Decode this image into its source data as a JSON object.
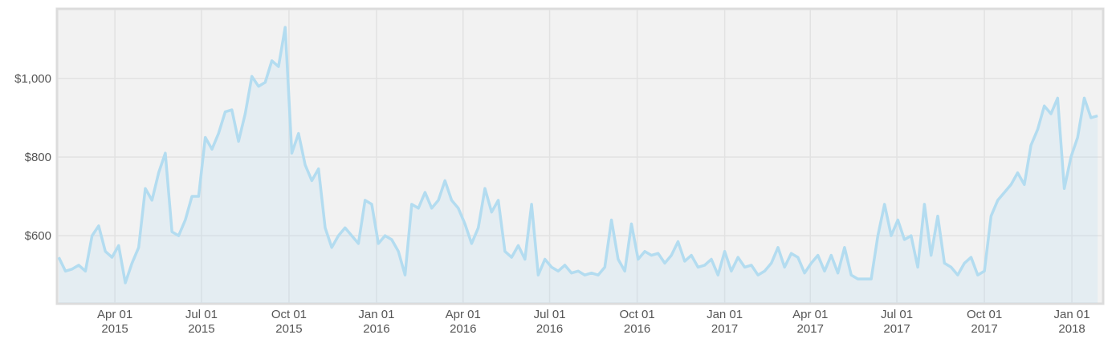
{
  "chart_data": {
    "type": "area",
    "x": [
      "2015-02-01",
      "2015-02-08",
      "2015-02-15",
      "2015-02-22",
      "2015-03-01",
      "2015-03-08",
      "2015-03-15",
      "2015-03-22",
      "2015-03-29",
      "2015-04-05",
      "2015-04-12",
      "2015-04-19",
      "2015-04-26",
      "2015-05-03",
      "2015-05-10",
      "2015-05-17",
      "2015-05-24",
      "2015-05-31",
      "2015-06-07",
      "2015-06-14",
      "2015-06-21",
      "2015-06-28",
      "2015-07-05",
      "2015-07-12",
      "2015-07-19",
      "2015-07-26",
      "2015-08-02",
      "2015-08-09",
      "2015-08-16",
      "2015-08-23",
      "2015-08-30",
      "2015-09-06",
      "2015-09-13",
      "2015-09-20",
      "2015-09-27",
      "2015-10-04",
      "2015-10-11",
      "2015-10-18",
      "2015-10-25",
      "2015-11-01",
      "2015-11-08",
      "2015-11-15",
      "2015-11-22",
      "2015-11-29",
      "2015-12-06",
      "2015-12-13",
      "2015-12-20",
      "2015-12-27",
      "2016-01-03",
      "2016-01-10",
      "2016-01-17",
      "2016-01-24",
      "2016-01-31",
      "2016-02-07",
      "2016-02-14",
      "2016-02-21",
      "2016-02-28",
      "2016-03-06",
      "2016-03-13",
      "2016-03-20",
      "2016-03-27",
      "2016-04-03",
      "2016-04-10",
      "2016-04-17",
      "2016-04-24",
      "2016-05-01",
      "2016-05-08",
      "2016-05-15",
      "2016-05-22",
      "2016-05-29",
      "2016-06-05",
      "2016-06-12",
      "2016-06-19",
      "2016-06-26",
      "2016-07-03",
      "2016-07-10",
      "2016-07-17",
      "2016-07-24",
      "2016-07-31",
      "2016-08-07",
      "2016-08-14",
      "2016-08-21",
      "2016-08-28",
      "2016-09-04",
      "2016-09-11",
      "2016-09-18",
      "2016-09-25",
      "2016-10-02",
      "2016-10-09",
      "2016-10-16",
      "2016-10-23",
      "2016-10-30",
      "2016-11-06",
      "2016-11-13",
      "2016-11-20",
      "2016-11-27",
      "2016-12-04",
      "2016-12-11",
      "2016-12-18",
      "2016-12-25",
      "2017-01-01",
      "2017-01-08",
      "2017-01-15",
      "2017-01-22",
      "2017-01-29",
      "2017-02-05",
      "2017-02-12",
      "2017-02-19",
      "2017-02-26",
      "2017-03-05",
      "2017-03-12",
      "2017-03-19",
      "2017-03-26",
      "2017-04-02",
      "2017-04-09",
      "2017-04-16",
      "2017-04-23",
      "2017-04-30",
      "2017-05-07",
      "2017-05-14",
      "2017-05-21",
      "2017-05-28",
      "2017-06-04",
      "2017-06-11",
      "2017-06-18",
      "2017-06-25",
      "2017-07-02",
      "2017-07-09",
      "2017-07-16",
      "2017-07-23",
      "2017-07-30",
      "2017-08-06",
      "2017-08-13",
      "2017-08-20",
      "2017-08-27",
      "2017-09-03",
      "2017-09-10",
      "2017-09-17",
      "2017-09-24",
      "2017-10-01",
      "2017-10-08",
      "2017-10-15",
      "2017-10-22",
      "2017-10-29",
      "2017-11-05",
      "2017-11-12",
      "2017-11-19",
      "2017-11-26",
      "2017-12-03",
      "2017-12-10",
      "2017-12-17",
      "2017-12-24",
      "2017-12-31",
      "2018-01-07",
      "2018-01-14",
      "2018-01-21",
      "2018-01-28"
    ],
    "values": [
      545,
      510,
      515,
      525,
      510,
      600,
      625,
      560,
      545,
      575,
      480,
      530,
      570,
      720,
      690,
      760,
      810,
      610,
      600,
      640,
      700,
      700,
      850,
      820,
      860,
      915,
      920,
      840,
      910,
      1005,
      980,
      990,
      1045,
      1030,
      1130,
      810,
      860,
      780,
      740,
      770,
      620,
      570,
      600,
      620,
      600,
      580,
      690,
      680,
      580,
      600,
      590,
      560,
      500,
      680,
      670,
      710,
      670,
      690,
      740,
      690,
      670,
      630,
      580,
      620,
      720,
      660,
      690,
      560,
      545,
      575,
      540,
      680,
      500,
      540,
      520,
      510,
      525,
      505,
      510,
      500,
      505,
      500,
      520,
      640,
      540,
      510,
      630,
      540,
      560,
      550,
      555,
      530,
      550,
      585,
      535,
      550,
      520,
      525,
      540,
      500,
      560,
      510,
      545,
      520,
      525,
      500,
      510,
      530,
      570,
      520,
      555,
      545,
      505,
      530,
      550,
      510,
      550,
      505,
      570,
      500,
      490,
      490,
      490,
      600,
      680,
      600,
      640,
      590,
      600,
      520,
      680,
      550,
      650,
      530,
      520,
      500,
      530,
      545,
      500,
      510,
      650,
      690,
      710,
      730,
      760,
      730,
      830,
      870,
      930,
      910,
      950,
      720,
      800,
      850,
      950,
      900,
      905
    ],
    "color": "#b3dcf0",
    "xlim": [
      "2015-01-31",
      "2018-02-02"
    ],
    "xticks": [
      {
        "value": "2015-04-01",
        "label": "Apr 01 2015"
      },
      {
        "value": "2015-07-01",
        "label": "Jul 01 2015"
      },
      {
        "value": "2015-10-01",
        "label": "Oct 01 2015"
      },
      {
        "value": "2016-01-01",
        "label": "Jan 01 2016"
      },
      {
        "value": "2016-04-01",
        "label": "Apr 01 2016"
      },
      {
        "value": "2016-07-01",
        "label": "Jul 01 2016"
      },
      {
        "value": "2016-10-01",
        "label": "Oct 01 2016"
      },
      {
        "value": "2017-01-01",
        "label": "Jan 01 2017"
      },
      {
        "value": "2017-04-01",
        "label": "Apr 01 2017"
      },
      {
        "value": "2017-07-01",
        "label": "Jul 01 2017"
      },
      {
        "value": "2017-10-01",
        "label": "Oct 01 2017"
      },
      {
        "value": "2018-01-01",
        "label": "Jan 01 2018"
      }
    ],
    "ylim": [
      429,
      1175
    ],
    "yticks": [
      {
        "value": 600,
        "label": "$600"
      },
      {
        "value": 800,
        "label": "$800"
      },
      {
        "value": 1000,
        "label": "$1,000"
      }
    ],
    "grid": true
  }
}
